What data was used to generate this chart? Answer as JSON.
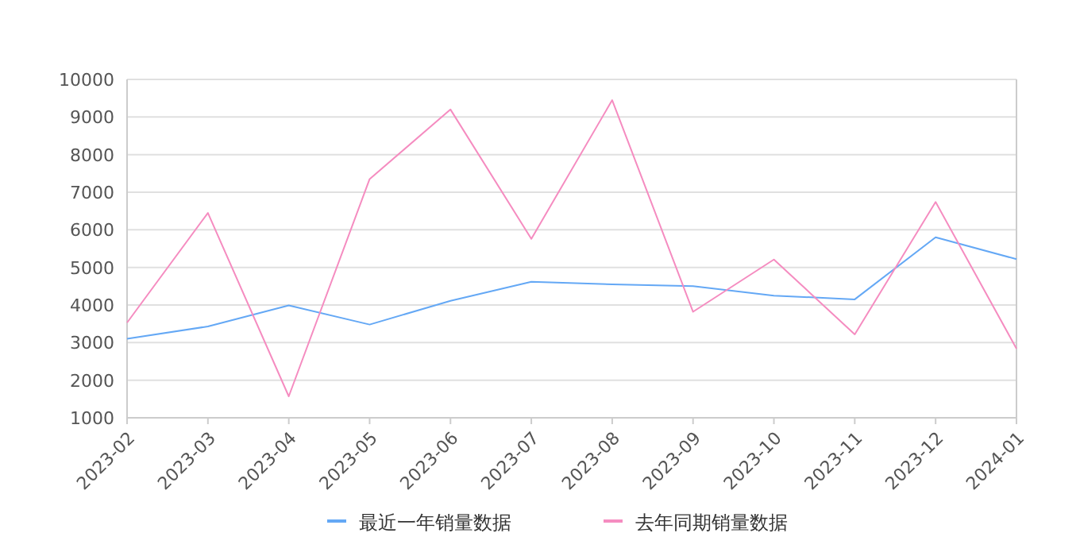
{
  "chart_data": {
    "type": "line",
    "categories": [
      "2023-02",
      "2023-03",
      "2023-04",
      "2023-05",
      "2023-06",
      "2023-07",
      "2023-08",
      "2023-09",
      "2023-10",
      "2023-11",
      "2023-12",
      "2024-01"
    ],
    "series": [
      {
        "name": "最近一年销量数据",
        "color": "#64a8f5",
        "values": [
          3100,
          3430,
          3990,
          3480,
          4110,
          4620,
          4550,
          4500,
          4250,
          4150,
          5800,
          5220
        ]
      },
      {
        "name": "去年同期销量数据",
        "color": "#f58cc0",
        "values": [
          3530,
          6450,
          1570,
          7350,
          9200,
          5760,
          9450,
          3820,
          5210,
          3220,
          6740,
          2840
        ]
      }
    ],
    "ylim": [
      1000,
      10000
    ],
    "yticks": [
      1000,
      2000,
      3000,
      4000,
      5000,
      6000,
      7000,
      8000,
      9000,
      10000
    ],
    "grid": "y",
    "legend": "bottom",
    "marker": "none",
    "line_style": "solid"
  }
}
